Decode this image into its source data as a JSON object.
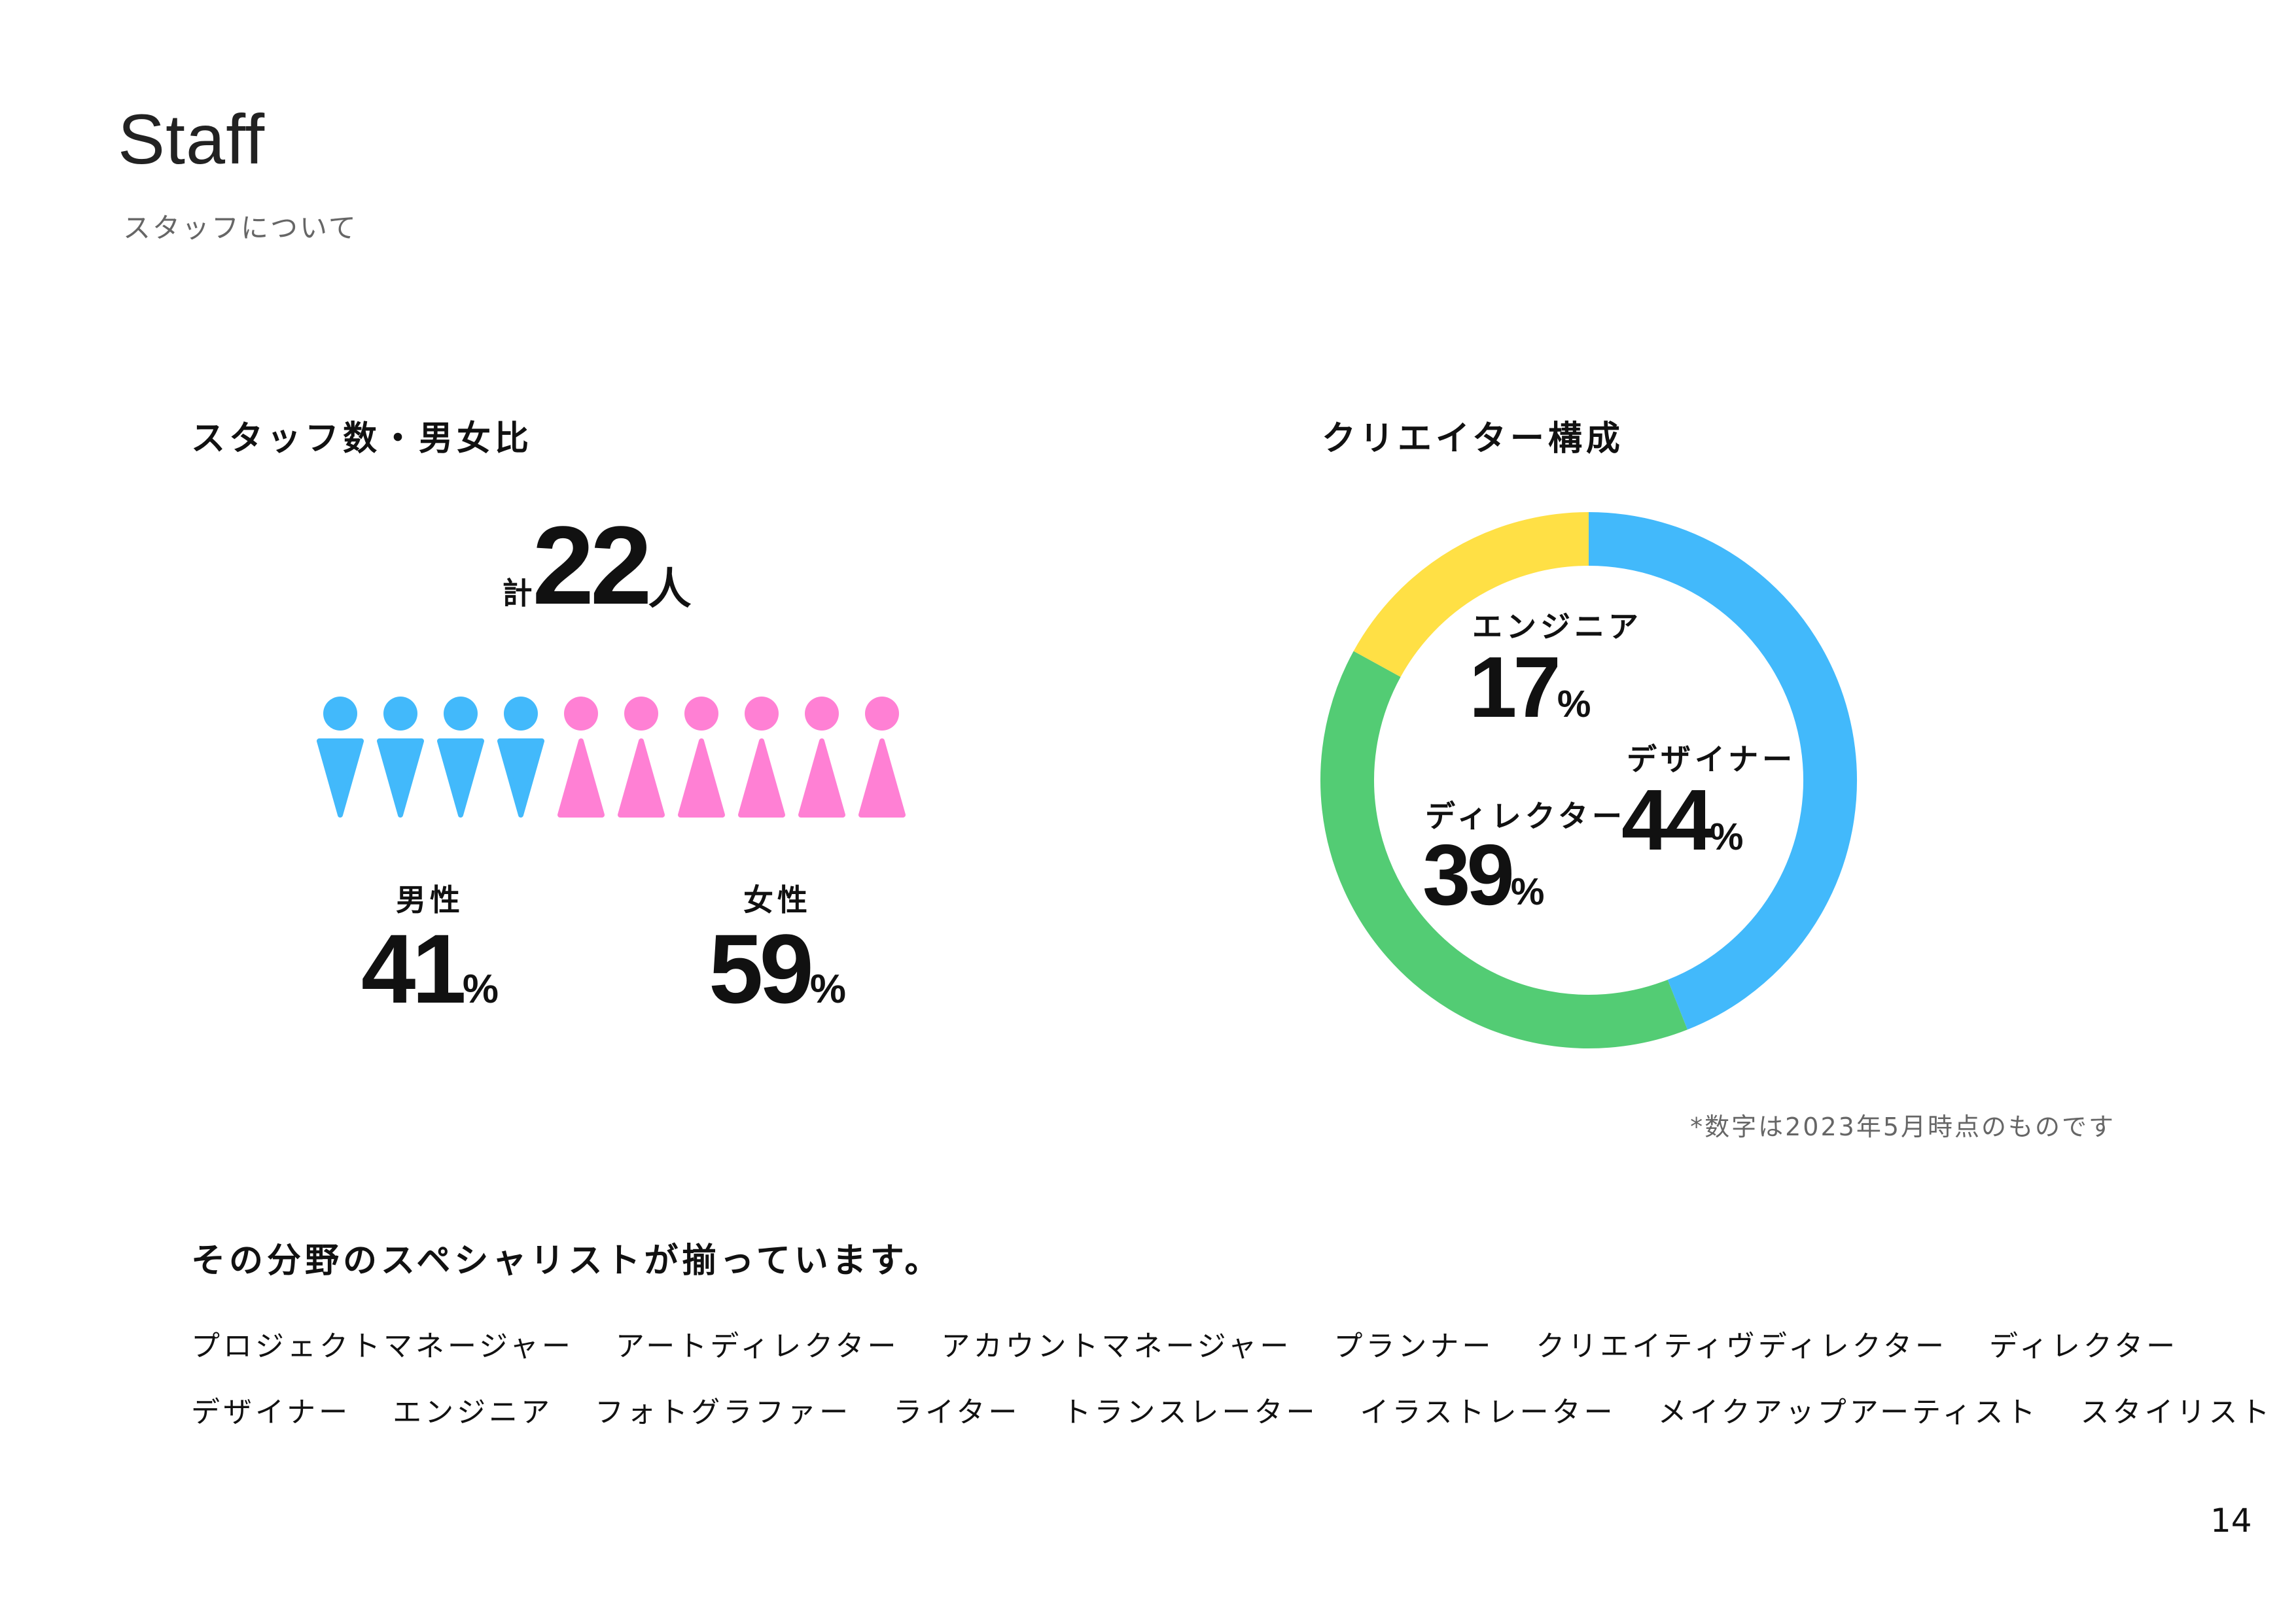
{
  "header": {
    "title": "Staff",
    "subtitle": "スタッフについて"
  },
  "staff": {
    "heading": "スタッフ数・男女比",
    "total_prefix": "計",
    "total": "22",
    "total_suffix": "人",
    "figures": {
      "male": 4,
      "female": 6
    },
    "male": {
      "label": "男性",
      "value": "41",
      "unit": "%"
    },
    "female": {
      "label": "女性",
      "value": "59",
      "unit": "%"
    }
  },
  "colors": {
    "male": "#42B9FB",
    "female": "#FF80D4",
    "designer": "#42B9FB",
    "director": "#53CC74",
    "engineer": "#FFE045"
  },
  "chart_data": {
    "type": "pie",
    "title": "クリエイター構成",
    "donut": true,
    "slices": [
      {
        "name": "デザイナー",
        "value": 44,
        "unit": "%",
        "color": "#42B9FB"
      },
      {
        "name": "ディレクター",
        "value": 39,
        "unit": "%",
        "color": "#53CC74"
      },
      {
        "name": "エンジニア",
        "value": 17,
        "unit": "%",
        "color": "#FFE045"
      }
    ]
  },
  "footnote": "*数字は2023年5月時点のものです",
  "specialists": {
    "heading": "その分野のスペシャリストが揃っています。",
    "row1": [
      "プロジェクトマネージャー",
      "アートディレクター",
      "アカウントマネージャー",
      "プランナー",
      "クリエイティヴディレクター",
      "ディレクター"
    ],
    "row2": [
      "デザイナー",
      "エンジニア",
      "フォトグラファー",
      "ライター",
      "トランスレーター",
      "イラストレーター",
      "メイクアップアーティスト",
      "スタイリスト"
    ]
  },
  "page_number": "14"
}
